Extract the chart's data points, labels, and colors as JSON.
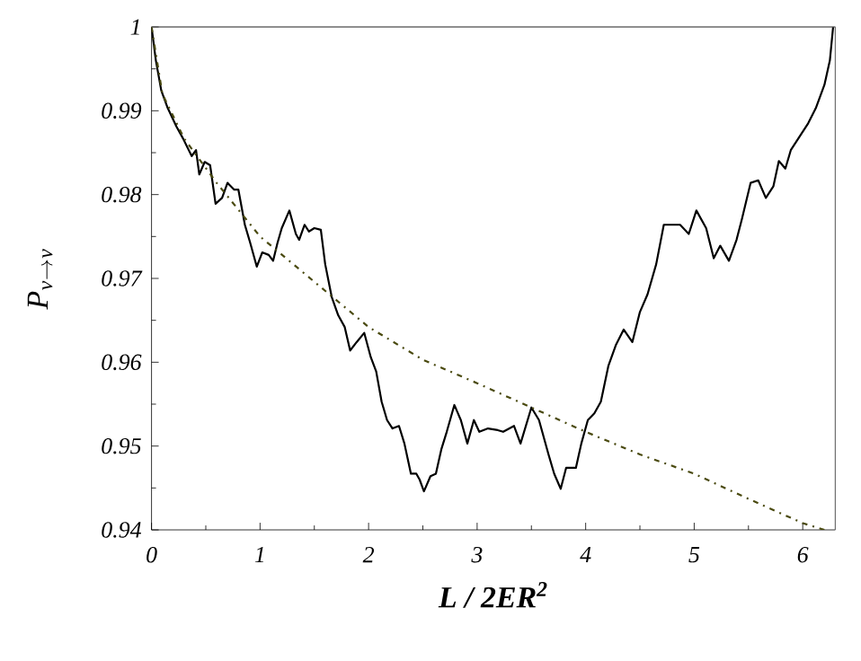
{
  "chart_data": {
    "type": "line",
    "xlabel": "L / 2ER$^{2}$",
    "ylabel": "P_{\\nu \\rightarrow \\nu}",
    "xlim": [
      0,
      6.3
    ],
    "xticks": [
      0,
      1,
      2,
      3,
      4,
      5,
      6
    ],
    "ylim": [
      0.94,
      1
    ],
    "yticks": [
      {
        "value": 0.94,
        "label": "0.94"
      },
      {
        "value": 0.95,
        "label": "0.95"
      },
      {
        "value": 0.96,
        "label": "0.96"
      },
      {
        "value": 0.97,
        "label": "0.97"
      },
      {
        "value": 0.98,
        "label": "0.98"
      },
      {
        "value": 0.99,
        "label": "0.99"
      },
      1
    ],
    "grid": false,
    "marker": "none",
    "series": [
      {
        "color": "#000000",
        "line_style": "solid",
        "x": [
          0,
          0.04,
          0.09,
          0.15,
          0.23,
          0.29,
          0.37,
          0.41,
          0.44,
          0.49,
          0.54,
          0.59,
          0.65,
          0.7,
          0.76,
          0.8,
          0.86,
          0.91,
          0.97,
          1.02,
          1.08,
          1.12,
          1.16,
          1.2,
          1.27,
          1.33,
          1.36,
          1.41,
          1.45,
          1.5,
          1.56,
          1.6,
          1.66,
          1.72,
          1.78,
          1.83,
          1.89,
          1.96,
          2.02,
          2.07,
          2.12,
          2.17,
          2.22,
          2.28,
          2.33,
          2.39,
          2.44,
          2.47,
          2.51,
          2.57,
          2.62,
          2.67,
          2.72,
          2.79,
          2.85,
          2.91,
          2.97,
          3.02,
          3.1,
          3.19,
          3.24,
          3.34,
          3.4,
          3.5,
          3.57,
          3.66,
          3.71,
          3.77,
          3.82,
          3.91,
          3.96,
          4.02,
          4.08,
          4.14,
          4.21,
          4.28,
          4.35,
          4.43,
          4.5,
          4.57,
          4.65,
          4.72,
          4.79,
          4.87,
          4.95,
          5.02,
          5.11,
          5.18,
          5.24,
          5.32,
          5.39,
          5.44,
          5.52,
          5.59,
          5.66,
          5.73,
          5.78,
          5.84,
          5.89,
          5.98,
          6.05,
          6.12,
          6.2,
          6.25,
          6.28
        ],
        "values": [
          1,
          0.996,
          0.9924,
          0.9903,
          0.9881,
          0.9867,
          0.9846,
          0.9853,
          0.9824,
          0.9839,
          0.9835,
          0.9789,
          0.9796,
          0.9814,
          0.9806,
          0.9806,
          0.9764,
          0.9742,
          0.9714,
          0.9731,
          0.9728,
          0.9721,
          0.9742,
          0.976,
          0.9781,
          0.9753,
          0.9746,
          0.9764,
          0.9756,
          0.976,
          0.9758,
          0.9717,
          0.9678,
          0.9656,
          0.9642,
          0.9614,
          0.9624,
          0.9635,
          0.9606,
          0.9589,
          0.9553,
          0.9531,
          0.9521,
          0.9524,
          0.9503,
          0.9467,
          0.9467,
          0.946,
          0.9446,
          0.9464,
          0.9467,
          0.9496,
          0.9517,
          0.9549,
          0.9531,
          0.9503,
          0.9531,
          0.9517,
          0.9521,
          0.9519,
          0.9517,
          0.9524,
          0.9503,
          0.9546,
          0.9531,
          0.9489,
          0.9467,
          0.9449,
          0.9474,
          0.9474,
          0.9503,
          0.9531,
          0.9539,
          0.9553,
          0.9596,
          0.9621,
          0.9639,
          0.9624,
          0.966,
          0.9681,
          0.9717,
          0.9764,
          0.9764,
          0.9764,
          0.9753,
          0.9781,
          0.976,
          0.9724,
          0.9739,
          0.9721,
          0.9746,
          0.9771,
          0.9814,
          0.9817,
          0.9796,
          0.981,
          0.984,
          0.9831,
          0.9853,
          0.9871,
          0.9885,
          0.9903,
          0.9931,
          0.996,
          1
        ]
      },
      {
        "color": "#4a4a10",
        "line_style": "dashdot",
        "x": [
          0,
          0.1,
          0.3,
          0.6,
          1.0,
          1.5,
          2.0,
          2.5,
          3.0,
          3.5,
          4.0,
          4.5,
          5.0,
          5.5,
          6.0,
          6.2
        ],
        "values": [
          1,
          0.992,
          0.9867,
          0.9814,
          0.975,
          0.9696,
          0.9642,
          0.9603,
          0.9575,
          0.9546,
          0.9517,
          0.949,
          0.9467,
          0.9437,
          0.9408,
          0.94
        ]
      }
    ]
  }
}
